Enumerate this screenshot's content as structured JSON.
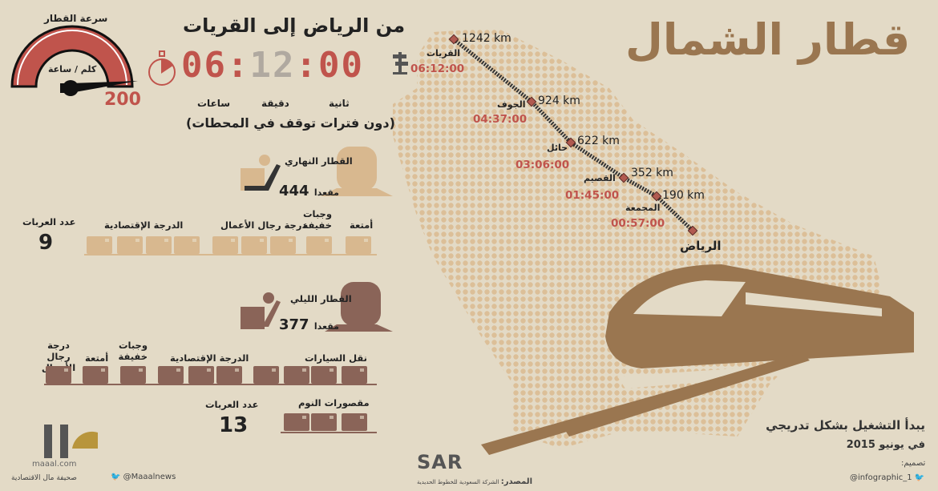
{
  "title": "قطار الشمال",
  "route": {
    "title": "من الرياض إلى القريات",
    "duration": {
      "hours": "06",
      "minutes": "12",
      "seconds": "00"
    },
    "units": {
      "seconds": "ثانية",
      "minutes": "دقيقة",
      "hours": "ساعات"
    },
    "note": "(دون فترات توقف في المحطات)"
  },
  "speed": {
    "label": "سرعة القطار",
    "unit": "كلم / ساعة",
    "value": "200"
  },
  "day_train": {
    "name": "القطار النهاري",
    "seats": "444",
    "seats_label": "مقعدا",
    "cars_label": "عدد العربات",
    "cars": "9",
    "sections": [
      "أمتعة",
      "وجبات خفيفة",
      "درجة رجال الأعمال",
      "الدرجة الإقتصادية"
    ],
    "color": "#d8b88f"
  },
  "night_train": {
    "name": "القطار الليلي",
    "seats": "377",
    "seats_label": "مقعدا",
    "cars_label": "عدد العربات",
    "cars": "13",
    "sections": [
      "نقل السيارات",
      "الدرجة الإقتصادية",
      "وجبات خفيفة",
      "أمتعة",
      "درجة رجال الأعمال",
      "مقصورات النوم"
    ],
    "color": "#8a6458"
  },
  "stations": [
    {
      "name": "القريات",
      "km": "1242 km",
      "time": "06:12:00"
    },
    {
      "name": "الجوف",
      "km": "924 km",
      "time": "04:37:00"
    },
    {
      "name": "حائل",
      "km": "622 km",
      "time": "03:06:00"
    },
    {
      "name": "القصيم",
      "km": "352 km",
      "time": "01:45:00"
    },
    {
      "name": "المجمعة",
      "km": "190 km",
      "time": "00:57:00"
    },
    {
      "name": "الرياض"
    }
  ],
  "launch": {
    "line1": "يبدأ التشغيل بشكل تدريجي",
    "line2": "في يونيو 2015"
  },
  "footer": {
    "design_label": "تصميم:",
    "design_handle": "@infographic_1",
    "source_label": "المصدر:",
    "source_org": "الشركة السعودية للخطوط الحديدية",
    "sar_logo": "SAR",
    "maaal_handle": "@Maaalnews",
    "maaal_name": "صحيفة مال الاقتصادية",
    "maaal_site": "maaal.com"
  },
  "colors": {
    "accent_red": "#c0544c",
    "title_brown": "#9a7650",
    "background": "#e3dac6"
  }
}
